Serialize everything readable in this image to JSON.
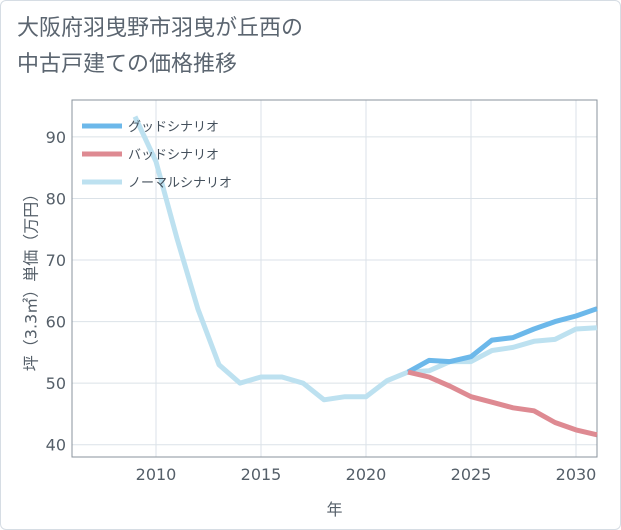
{
  "title_lines": [
    "大阪府羽曳野市羽曳が丘西の",
    "中古戸建ての価格推移"
  ],
  "chart_data": {
    "type": "line",
    "xlabel": "年",
    "ylabel": "坪（3.3㎡）単価（万円）",
    "xlim": [
      2006,
      2031
    ],
    "ylim": [
      38,
      96
    ],
    "x_ticks": [
      2010,
      2015,
      2020,
      2025,
      2030
    ],
    "y_ticks": [
      40,
      50,
      60,
      70,
      80,
      90
    ],
    "grid": true,
    "legend_position": "top-left",
    "series": [
      {
        "name": "グッドシナリオ",
        "color": "#6cb8ea",
        "x": [
          2022,
          2023,
          2024,
          2025,
          2026,
          2027,
          2028,
          2029,
          2030,
          2031
        ],
        "y": [
          51.8,
          53.7,
          53.5,
          54.3,
          57.0,
          57.4,
          58.8,
          60.0,
          60.9,
          62.1
        ]
      },
      {
        "name": "バッドシナリオ",
        "color": "#de8a92",
        "x": [
          2022,
          2023,
          2024,
          2025,
          2026,
          2027,
          2028,
          2029,
          2030,
          2031
        ],
        "y": [
          51.8,
          51.0,
          49.5,
          47.8,
          46.9,
          46.0,
          45.5,
          43.6,
          42.4,
          41.6
        ]
      },
      {
        "name": "ノーマルシナリオ",
        "color": "#bde1f0",
        "x": [
          2009,
          2010,
          2011,
          2012,
          2013,
          2014,
          2015,
          2016,
          2017,
          2018,
          2019,
          2020,
          2021,
          2022,
          2023,
          2024,
          2025,
          2026,
          2027,
          2028,
          2029,
          2030,
          2031
        ],
        "y": [
          93.3,
          86.0,
          73.5,
          62.0,
          53.0,
          50.0,
          51.0,
          51.0,
          50.0,
          47.3,
          47.8,
          47.8,
          50.4,
          51.8,
          52.0,
          53.5,
          53.5,
          55.3,
          55.8,
          56.8,
          57.1,
          58.8,
          59.0
        ]
      }
    ]
  }
}
